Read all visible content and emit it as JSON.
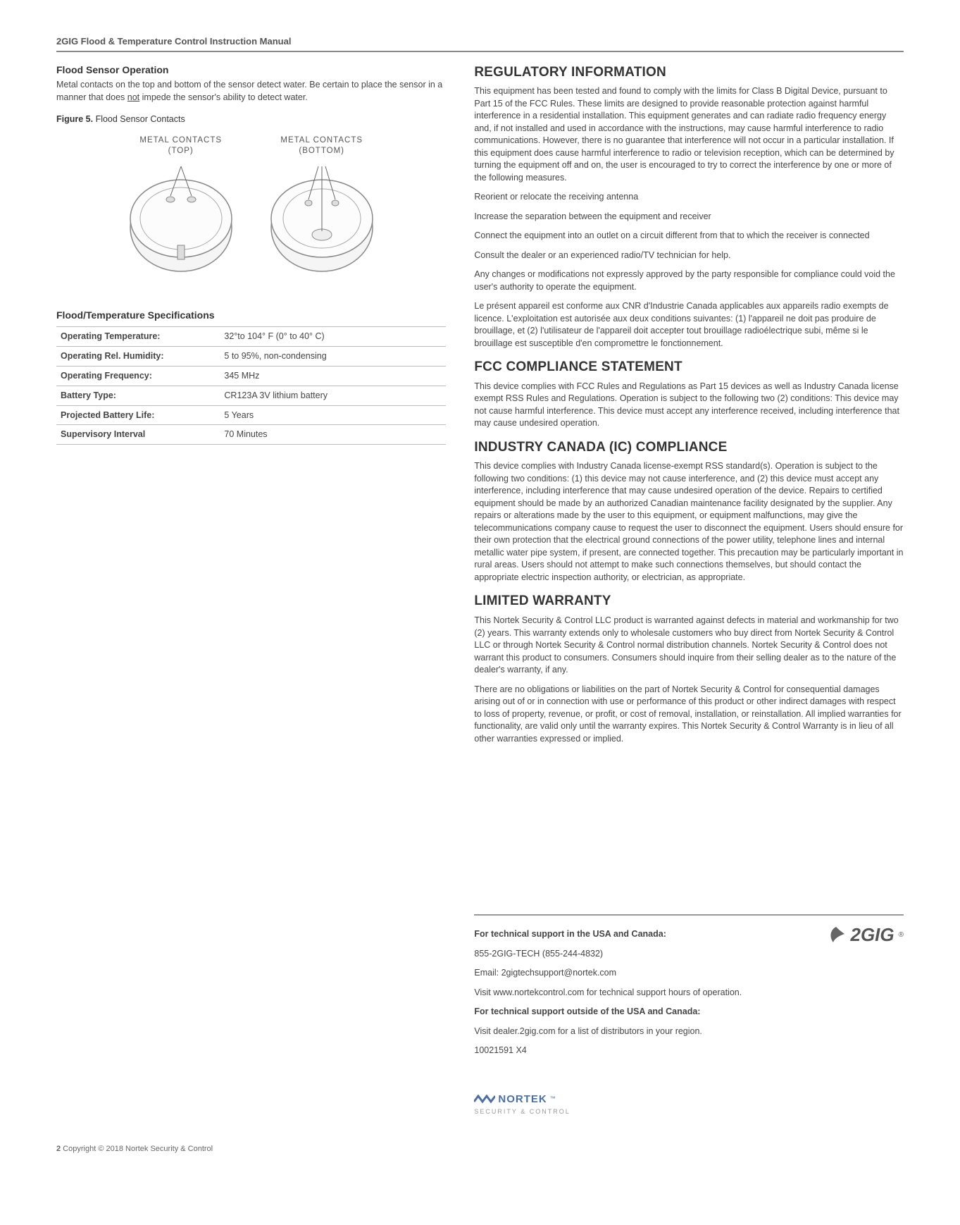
{
  "header": {
    "title": "2GIG Flood & Temperature Control Instruction Manual"
  },
  "left": {
    "h_flood_op": "Flood Sensor Operation",
    "p_flood_op": "Metal contacts on the top and bottom of the sensor detect water. Be certain to place the sensor in a manner that does ",
    "p_flood_op_underlined": "not",
    "p_flood_op_after": " impede the sensor's ability to detect water.",
    "fig_label_b": "Figure 5.",
    "fig_label_rest": " Flood Sensor Contacts",
    "diag_top_label_1": "METAL CONTACTS",
    "diag_top_label_2": "(TOP)",
    "diag_bot_label_1": "METAL CONTACTS",
    "diag_bot_label_2": "(BOTTOM)",
    "spec_title": "Flood/Temperature Specifications",
    "spec_rows": [
      {
        "k": "Operating Temperature:",
        "v": "32°to 104° F (0° to 40° C)"
      },
      {
        "k": "Operating Rel. Humidity:",
        "v": "5 to 95%, non-condensing"
      },
      {
        "k": "Operating Frequency:",
        "v": "345 MHz"
      },
      {
        "k": "Battery Type:",
        "v": "CR123A 3V  lithium battery"
      },
      {
        "k": "Projected Battery Life:",
        "v": "5 Years"
      },
      {
        "k": "Supervisory Interval",
        "v": "70 Minutes"
      }
    ]
  },
  "right": {
    "h_reg": "REGULATORY INFORMATION",
    "p_reg_1": "This equipment has been tested and found to comply with the limits for Class B Digital Device, pursuant to Part 15 of the FCC Rules. These limits are designed to provide reasonable protection against harmful interference in a residential installation. This equipment generates and can radiate radio frequency energy and, if not installed and used in accordance with the instructions, may cause harmful interference to radio communications. However, there is no guarantee that interference will not occur in a particular installation. If this equipment does cause harmful interference to radio or television reception, which can be determined by turning the equipment off and on, the user is encouraged to try to correct the interference by one or more of the following measures.",
    "p_reg_2": "Reorient or relocate the receiving antenna",
    "p_reg_3": "Increase the separation between the equipment and receiver",
    "p_reg_4": "Connect the equipment into an outlet on a circuit different from that to which the receiver is connected",
    "p_reg_5": "Consult the dealer or an experienced radio/TV technician for help.",
    "p_reg_6": "Any changes or modifications not expressly approved by the party responsible for compliance could void the user's authority to operate the equipment.",
    "p_reg_7": "Le présent appareil est conforme aux CNR d'Industrie Canada applicables aux appareils radio exempts de licence. L'exploitation est autorisée aux deux conditions suivantes: (1) l'appareil ne doit pas produire de brouillage, et (2) l'utilisateur de l'appareil doit accepter tout brouillage radioélectrique subi, même si le brouillage est susceptible d'en compromettre le fonctionnement.",
    "h_fcc": "FCC COMPLIANCE STATEMENT",
    "p_fcc": "This device complies with FCC Rules and Regulations as Part 15 devices as well as Industry Canada license exempt RSS Rules and Regulations. Operation is subject to the following two (2) conditions: This device may not cause harmful interference. This device must accept any interference received, including interference that may cause undesired operation.",
    "h_ic": "INDUSTRY CANADA (IC) COMPLIANCE",
    "p_ic": "This device complies with Industry Canada license-exempt RSS standard(s). Operation is subject to the following two conditions: (1) this device may not cause interference, and (2) this device must accept any interference, including interference that may cause undesired operation of the device. Repairs to certified equipment should be made by an authorized Canadian maintenance facility designated by the supplier. Any repairs or alterations made by the user to this equipment, or equipment malfunctions, may give the telecommunications company cause to request the user to disconnect the equipment. Users should ensure for their own protection that the electrical ground connections of the power utility, telephone lines and internal metallic water pipe system, if present, are connected together. This precaution may be particularly important in rural areas. Users should not attempt to make such connections themselves, but should contact the appropriate electric inspection authority, or electrician, as appropriate.",
    "h_warr": "LIMITED WARRANTY",
    "p_warr_1": "This Nortek Security & Control LLC product is warranted against defects in material and workmanship for two (2) years. This warranty extends only to wholesale customers who buy direct from Nortek Security & Control LLC or through Nortek Security & Control normal distribution channels. Nortek Security & Control does not warrant this product to consumers. Consumers should inquire from their selling dealer as to the nature of the dealer's warranty, if any.",
    "p_warr_2": "There are no obligations or liabilities on the part of Nortek Security & Control for consequential damages arising out of or in connection with use or performance of this product or other indirect damages with respect to loss of property, revenue, or profit, or cost of removal, installation, or reinstallation. All implied warranties for functionality, are valid only until the warranty expires. This Nortek Security & Control Warranty is in lieu of all other warranties expressed or implied."
  },
  "footer": {
    "f1_b": "For technical support in the USA and Canada:",
    "f2": "855-2GIG-TECH (855-244-4832)",
    "f3": "Email: 2gigtechsupport@nortek.com",
    "f4": "Visit www.nortekcontrol.com for technical support hours of operation.",
    "f5_b": "For technical support outside of the USA and Canada:",
    "f6": "Visit dealer.2gig.com for a list of distributors in your region.",
    "f7": "10021591 X4",
    "logo_text": "2GIG",
    "nortek_top": "NORTEK",
    "nortek_sub": "SECURITY & CONTROL"
  },
  "pagefoot": {
    "num": "2",
    "copy": " Copyright © 2018 Nortek Security & Control"
  },
  "style": {
    "page_bg": "#ffffff",
    "rule_color": "#888888",
    "text_color": "#444444",
    "heading_color": "#333333",
    "table_border": "#bbbbbb",
    "nortek_blue": "#4a6fa5",
    "sensor_fill": "#f5f5f5",
    "sensor_stroke": "#888888",
    "body_font_size": 13,
    "heading_font_size": 19,
    "section_heading_size": 14
  }
}
